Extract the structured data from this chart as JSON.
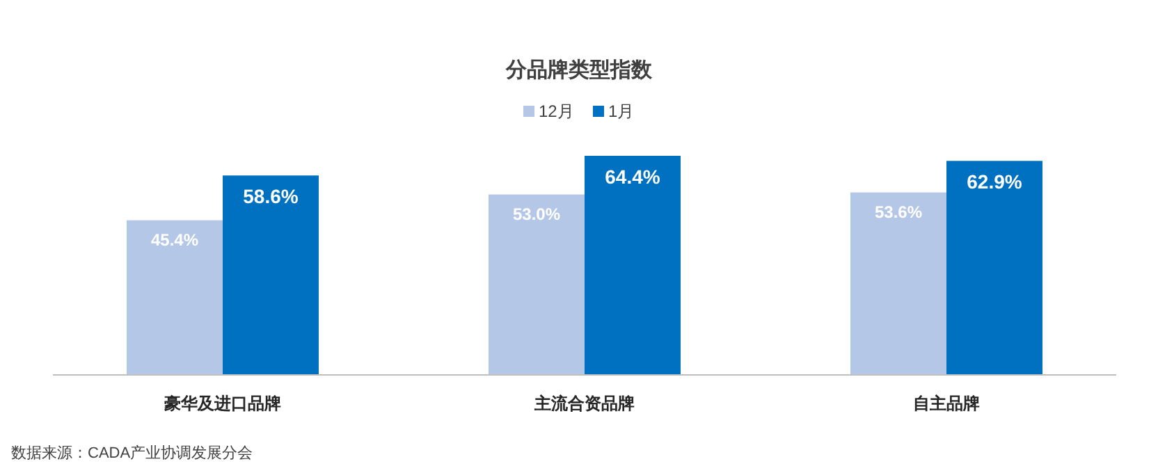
{
  "chart_data": {
    "type": "bar",
    "title": "分品牌类型指数",
    "categories": [
      "豪华及进口品牌",
      "主流合资品牌",
      "自主品牌"
    ],
    "series": [
      {
        "name": "12月",
        "color": "#b4c7e7",
        "values": [
          45.4,
          53.0,
          53.6
        ],
        "value_labels": [
          "45.4%",
          "53.0%",
          "53.6%"
        ]
      },
      {
        "name": "1月",
        "color": "#0070c0",
        "values": [
          58.6,
          64.4,
          62.9
        ],
        "value_labels": [
          "58.6%",
          "64.4%",
          "62.9%"
        ]
      }
    ],
    "legend": "top",
    "annotations": [
      "数据来源：CADA产业协调发展分会"
    ]
  }
}
